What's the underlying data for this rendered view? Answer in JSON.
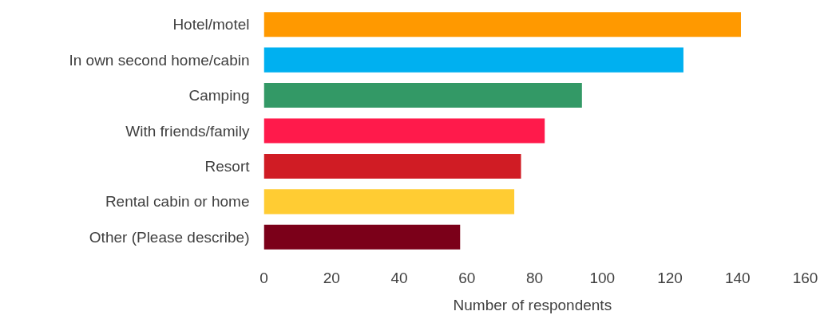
{
  "chart_data": {
    "type": "bar",
    "orientation": "horizontal",
    "xlabel": "Number  of respondents",
    "categories": [
      "Hotel/motel",
      "In own second home/cabin",
      "Camping",
      "With friends/family",
      "Resort",
      "Rental cabin or home",
      "Other (Please describe)"
    ],
    "values": [
      141,
      124,
      94,
      83,
      76,
      74,
      58
    ],
    "colors": [
      "#ff9900",
      "#00b0f0",
      "#339966",
      "#ff1a4b",
      "#d01c24",
      "#ffcc33",
      "#7b0019"
    ],
    "xlim": [
      0,
      160
    ],
    "xticks": [
      0,
      20,
      40,
      60,
      80,
      100,
      120,
      140,
      160
    ],
    "grid": false
  }
}
